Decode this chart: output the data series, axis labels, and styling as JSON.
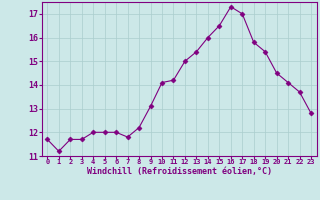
{
  "x": [
    0,
    1,
    2,
    3,
    4,
    5,
    6,
    7,
    8,
    9,
    10,
    11,
    12,
    13,
    14,
    15,
    16,
    17,
    18,
    19,
    20,
    21,
    22,
    23
  ],
  "y": [
    11.7,
    11.2,
    11.7,
    11.7,
    12.0,
    12.0,
    12.0,
    11.8,
    12.2,
    13.1,
    14.1,
    14.2,
    15.0,
    15.4,
    16.0,
    16.5,
    17.3,
    17.0,
    15.8,
    15.4,
    14.5,
    14.1,
    13.7,
    12.8
  ],
  "line_color": "#800080",
  "marker": "D",
  "marker_size": 2.5,
  "bg_color": "#cce8e8",
  "grid_color": "#aacece",
  "xlabel": "Windchill (Refroidissement éolien,°C)",
  "xlabel_color": "#800080",
  "tick_color": "#800080",
  "ylim": [
    11,
    17.5
  ],
  "yticks": [
    11,
    12,
    13,
    14,
    15,
    16,
    17
  ],
  "xticks": [
    0,
    1,
    2,
    3,
    4,
    5,
    6,
    7,
    8,
    9,
    10,
    11,
    12,
    13,
    14,
    15,
    16,
    17,
    18,
    19,
    20,
    21,
    22,
    23
  ],
  "spine_color": "#800080",
  "line_width": 0.8
}
